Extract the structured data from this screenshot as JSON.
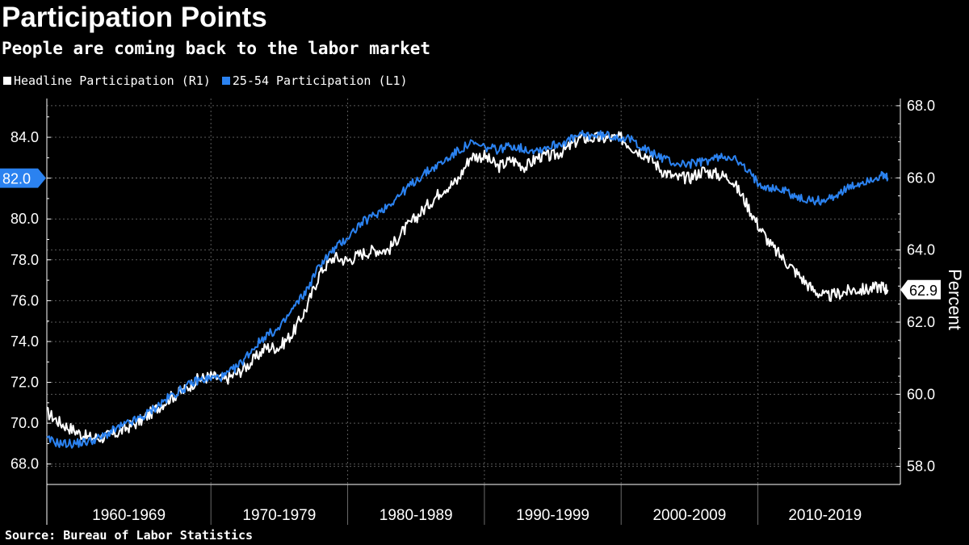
{
  "title": "Participation Points",
  "subtitle": "People are coming back to the labor market",
  "source": "Source:  Bureau of Labor Statistics",
  "legend": [
    {
      "label": "Headline Participation (R1)",
      "color": "#ffffff"
    },
    {
      "label": "25-54 Participation (L1)",
      "color": "#2b82f0"
    }
  ],
  "chart_data": {
    "type": "line",
    "categories": [
      "1960-1969",
      "1970-1979",
      "1980-1989",
      "1990-1999",
      "2000-2009",
      "2010-2019"
    ],
    "x_range": [
      1958,
      2019.83
    ],
    "left_axis": {
      "ticks": [
        "84.0",
        "82.0",
        "80.0",
        "78.0",
        "76.0",
        "74.0",
        "72.0",
        "70.0",
        "68.0"
      ],
      "ylim": [
        67.0,
        85.9
      ]
    },
    "right_axis": {
      "label": "Percent",
      "ticks": [
        "68.0",
        "66.0",
        "64.0",
        "62.0",
        "60.0",
        "58.0"
      ],
      "ylim": [
        57.5,
        68.2
      ]
    },
    "last_value_labels": {
      "left": "82.0",
      "right": "62.9"
    },
    "grid": true,
    "series": [
      {
        "name": "Headline Participation (R1)",
        "axis": "right",
        "color": "#ffffff",
        "x": [
          1958,
          1959,
          1960,
          1961,
          1962,
          1963,
          1964,
          1965,
          1966,
          1967,
          1968,
          1969,
          1970,
          1971,
          1972,
          1973,
          1974,
          1975,
          1976,
          1977,
          1978,
          1979,
          1980,
          1981,
          1982,
          1983,
          1984,
          1985,
          1986,
          1987,
          1988,
          1989,
          1990,
          1991,
          1992,
          1993,
          1994,
          1995,
          1996,
          1997,
          1998,
          1999,
          2000,
          2001,
          2002,
          2003,
          2004,
          2005,
          2006,
          2007,
          2008,
          2009,
          2010,
          2011,
          2012,
          2013,
          2014,
          2015,
          2016,
          2017,
          2018,
          2019,
          2019.5
        ],
        "values": [
          59.5,
          59.2,
          59.0,
          58.8,
          58.8,
          58.9,
          59.1,
          59.3,
          59.6,
          59.9,
          60.1,
          60.4,
          60.5,
          60.4,
          60.6,
          60.9,
          61.3,
          61.3,
          61.7,
          62.4,
          63.4,
          63.8,
          63.7,
          63.9,
          64.0,
          64.0,
          64.5,
          64.9,
          65.3,
          65.7,
          65.9,
          66.6,
          66.6,
          66.3,
          66.5,
          66.3,
          66.6,
          66.6,
          66.8,
          67.1,
          67.1,
          67.1,
          67.1,
          66.8,
          66.6,
          66.2,
          66.0,
          66.0,
          66.2,
          66.1,
          66.0,
          65.4,
          64.7,
          64.1,
          63.7,
          63.3,
          62.9,
          62.7,
          62.8,
          62.9,
          62.9,
          63.0,
          62.9
        ]
      },
      {
        "name": "25-54 Participation (L1)",
        "axis": "left",
        "color": "#2b82f0",
        "x": [
          1958,
          1959,
          1960,
          1961,
          1962,
          1963,
          1964,
          1965,
          1966,
          1967,
          1968,
          1969,
          1970,
          1971,
          1972,
          1973,
          1974,
          1975,
          1976,
          1977,
          1978,
          1979,
          1980,
          1981,
          1982,
          1983,
          1984,
          1985,
          1986,
          1987,
          1988,
          1989,
          1990,
          1991,
          1992,
          1993,
          1994,
          1995,
          1996,
          1997,
          1998,
          1999,
          2000,
          2001,
          2002,
          2003,
          2004,
          2005,
          2006,
          2007,
          2008,
          2009,
          2010,
          2011,
          2012,
          2013,
          2014,
          2015,
          2016,
          2017,
          2018,
          2019,
          2019.5
        ],
        "values": [
          69.2,
          69.0,
          69.0,
          69.1,
          69.3,
          69.7,
          70.0,
          70.3,
          70.8,
          71.3,
          71.7,
          72.1,
          72.2,
          72.3,
          72.8,
          73.6,
          74.3,
          74.6,
          75.6,
          76.5,
          77.8,
          78.5,
          79.1,
          79.8,
          80.2,
          80.7,
          81.3,
          81.9,
          82.4,
          82.8,
          83.3,
          83.7,
          83.5,
          83.4,
          83.6,
          83.4,
          83.4,
          83.6,
          83.8,
          84.1,
          84.1,
          84.1,
          84.0,
          83.8,
          83.3,
          83.0,
          82.7,
          82.7,
          82.8,
          83.0,
          83.1,
          82.5,
          81.8,
          81.5,
          81.4,
          81.0,
          80.9,
          80.9,
          81.3,
          81.6,
          81.9,
          82.1,
          82.0
        ]
      }
    ]
  }
}
